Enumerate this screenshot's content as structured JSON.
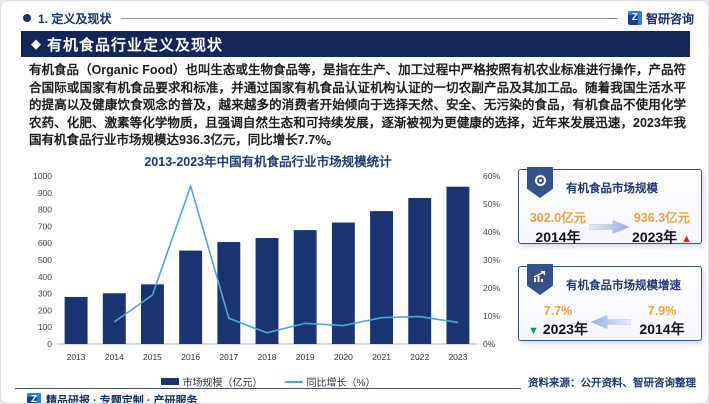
{
  "top_bar": {
    "section_label": "1. 定义及现状",
    "brand_name": "智研咨询",
    "brand_glyph": "Z"
  },
  "header": {
    "bullet_glyph": "◆",
    "title": "有机食品行业定义及现状"
  },
  "intro_text": "有机食品（Organic Food）也叫生态或生物食品等，是指在生产、加工过程中严格按照有机农业标准进行操作，产品符合国际或国家有机食品要求和标准，并通过国家有机食品认证机构认证的一切农副产品及其加工品。随着我国生活水平的提高以及健康饮食观念的普及，越来越多的消费者开始倾向于选择天然、安全、无污染的食品，有机食品不使用化学农药、化肥、激素等化学物质，且强调自然生态和可持续发展，逐渐被视为更健康的选择，近年来发展迅速，2023年我国有机食品行业市场规模达936.3亿元，同比增长7.7%。",
  "chart_data": {
    "type": "bar",
    "title": "2013-2023年中国有机食品行业市场规模统计",
    "categories": [
      "2013",
      "2014",
      "2015",
      "2016",
      "2017",
      "2018",
      "2019",
      "2020",
      "2021",
      "2022",
      "2023"
    ],
    "series": [
      {
        "name": "市场规模（亿元）",
        "type": "bar",
        "axis": "left",
        "color": "#1a3472",
        "values": [
          280,
          302.0,
          355,
          556,
          607,
          631,
          678,
          723,
          791,
          869,
          936.3
        ]
      },
      {
        "name": "同比增长（%）",
        "type": "line",
        "axis": "right",
        "color": "#4ea5dc",
        "values": [
          null,
          7.9,
          17.5,
          56.4,
          9.2,
          4.0,
          7.4,
          6.6,
          9.4,
          9.8,
          7.7
        ]
      }
    ],
    "left_axis": {
      "min": 0,
      "max": 1000,
      "step": 100
    },
    "right_axis": {
      "min": 0,
      "max": 60,
      "step": 10,
      "suffix": "%"
    },
    "legend_position": "bottom",
    "grid": false
  },
  "cards": [
    {
      "icon": "circle-badge-icon",
      "title": "有机食品市场规模",
      "left": {
        "value": "302.0亿元",
        "label": "2014年"
      },
      "right": {
        "value": "936.3亿元",
        "label": "2023年",
        "trend": "up",
        "trend_glyph": "▲"
      },
      "arrow_direction": "right"
    },
    {
      "icon": "trend-chart-icon",
      "title": "有机食品市场规模增速",
      "left": {
        "value": "7.7%",
        "label": "2023年",
        "trend": "down",
        "trend_glyph": "▼"
      },
      "right": {
        "value": "7.9%",
        "label": "2014年"
      },
      "arrow_direction": "left"
    }
  ],
  "footer": {
    "source": "资料来源：公开资料、智研咨询整理",
    "tagline": "精品研报 · 专题定制 · 产研服务"
  },
  "colors": {
    "navy_header": "#13265c",
    "navy_text": "#1f3a78",
    "bar": "#1a3472",
    "line": "#4ea5dc",
    "value_orange": "#f2a13c",
    "trend_red": "#d9251c",
    "trend_green": "#16a04a",
    "card_border": "#33508f"
  }
}
